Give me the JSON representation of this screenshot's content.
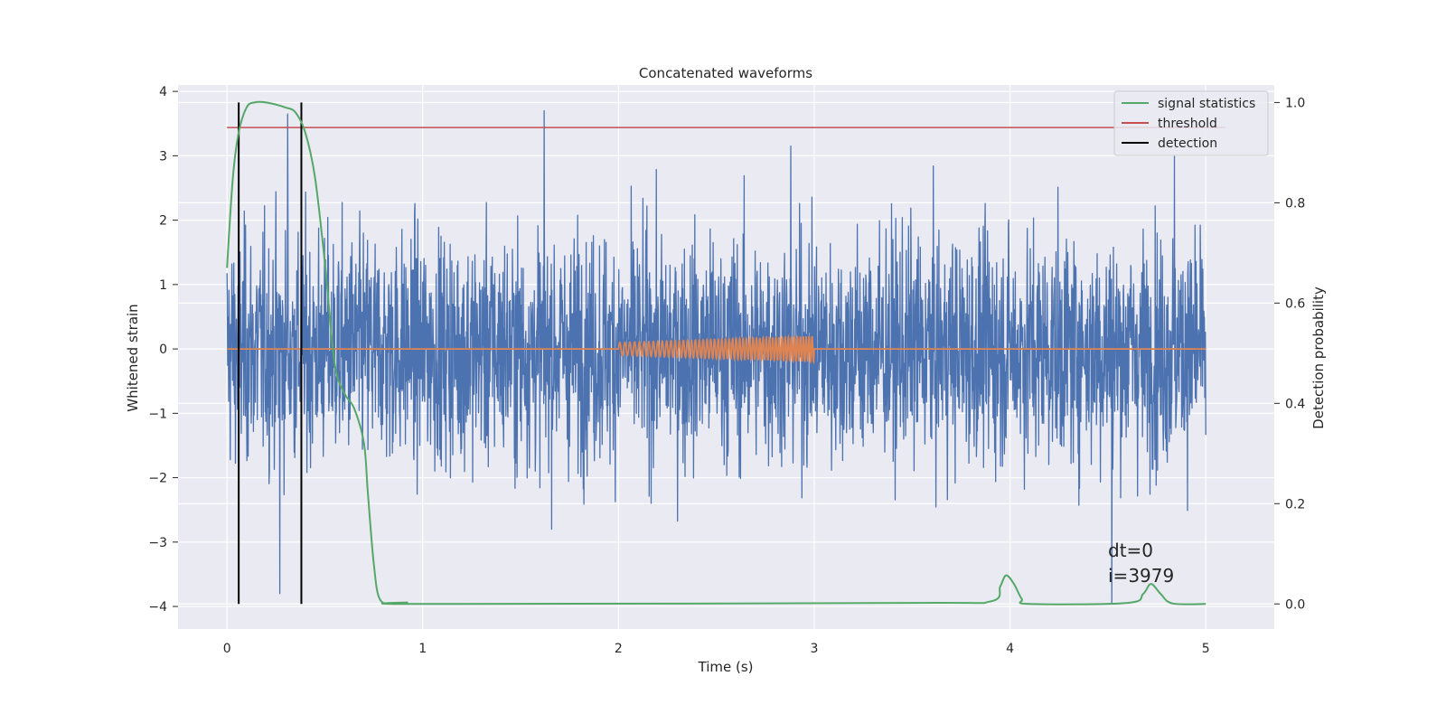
{
  "chart_data": {
    "type": "line",
    "title": "Concatenated waveforms",
    "xlabel": "Time (s)",
    "ylabel_left": "Whitened strain",
    "ylabel_right": "Detection probability",
    "xlim": [
      -0.25,
      5.35
    ],
    "ylim_left": [
      -4.35,
      4.1
    ],
    "ylim_right": [
      -0.05,
      1.035
    ],
    "x_ticks": [
      0,
      1,
      2,
      3,
      4,
      5
    ],
    "x_tick_labels": [
      "0",
      "1",
      "2",
      "3",
      "4",
      "5"
    ],
    "y_left_ticks": [
      -4,
      -3,
      -2,
      -1,
      0,
      1,
      2,
      3,
      4
    ],
    "y_left_tick_labels": [
      "−4",
      "−3",
      "−2",
      "−1",
      "0",
      "1",
      "2",
      "3",
      "4"
    ],
    "y_right_ticks": [
      0.0,
      0.2,
      0.4,
      0.6,
      0.8,
      1.0
    ],
    "y_right_tick_labels": [
      "0.0",
      "0.2",
      "0.4",
      "0.6",
      "0.8",
      "1.0"
    ],
    "grid": true,
    "legend_position": "top-right",
    "legend": [
      {
        "label": "signal statistics",
        "color": "#55a868"
      },
      {
        "label": "threshold",
        "color": "#c44e52"
      },
      {
        "label": "detection",
        "color": "#000000"
      }
    ],
    "series": [
      {
        "role": "whitened-strain-noise",
        "axis": "left",
        "color": "#4c72b0",
        "x_range": [
          0,
          5
        ],
        "amplitude_typical": 1.0,
        "peaks": [
          [
            0.31,
            3.65
          ],
          [
            0.27,
            -3.8
          ],
          [
            1.62,
            3.7
          ],
          [
            2.88,
            3.15
          ],
          [
            4.52,
            -3.95
          ],
          [
            4.84,
            3.0
          ]
        ]
      },
      {
        "role": "injected-chirp",
        "axis": "left",
        "color": "#dd8452",
        "x_range": [
          2.0,
          3.0
        ],
        "amplitude_range": [
          0.1,
          0.2
        ],
        "baseline": 0
      },
      {
        "role": "signal-statistics",
        "axis": "right",
        "color": "#55a868",
        "x": [
          0.0,
          0.03,
          0.06,
          0.1,
          0.14,
          0.2,
          0.3,
          0.35,
          0.4,
          0.45,
          0.5,
          0.55,
          0.6,
          0.65,
          0.7,
          0.72,
          0.75,
          0.78,
          0.85,
          0.92,
          1.0,
          3.5,
          3.9,
          3.95,
          3.98,
          4.02,
          4.06,
          4.1,
          4.6,
          4.68,
          4.72,
          4.77,
          4.83,
          5.0
        ],
        "y": [
          0.67,
          0.85,
          0.94,
          0.99,
          1.0,
          1.0,
          0.99,
          0.98,
          0.94,
          0.85,
          0.68,
          0.48,
          0.42,
          0.39,
          0.32,
          0.22,
          0.08,
          0.01,
          0.0,
          0.003,
          0.0,
          0.002,
          0.005,
          0.035,
          0.057,
          0.04,
          0.01,
          0.0,
          0.002,
          0.02,
          0.04,
          0.02,
          0.001,
          0.0
        ]
      },
      {
        "role": "threshold",
        "axis": "right",
        "color": "#c44e52",
        "x": [
          0,
          5.1
        ],
        "y": [
          0.95,
          0.95
        ]
      },
      {
        "role": "detection",
        "axis": "right",
        "color": "#000000",
        "x": [
          0.06,
          0.38
        ],
        "y_span": [
          0.0,
          1.0
        ]
      }
    ],
    "annotation_lines": [
      "dt=0",
      "i=3979"
    ]
  }
}
